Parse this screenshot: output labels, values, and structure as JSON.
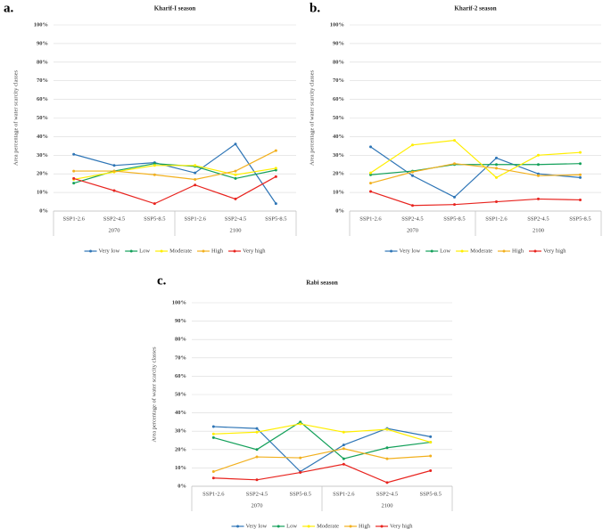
{
  "chart_data": [
    {
      "type": "line",
      "panel_label": "a.",
      "title": "Kharif-I season",
      "y_label": "Area percentage of water scarcity classes",
      "categories": [
        "SSP1-2.6",
        "SSP2-4.5",
        "SSP5-8.5",
        "SSP1-2.6",
        "SSP2-4.5",
        "SSP5-8.5"
      ],
      "x_groups": [
        "2070",
        "2100"
      ],
      "ylim": [
        0,
        100
      ],
      "yticks": [
        {
          "value": 0,
          "label": "0%"
        },
        {
          "value": 10,
          "label": "10%"
        },
        {
          "value": 20,
          "label": "20%"
        },
        {
          "value": 30,
          "label": "30%"
        },
        {
          "value": 40,
          "label": "40%"
        },
        {
          "value": 50,
          "label": "50%"
        },
        {
          "value": 60,
          "label": "60%"
        },
        {
          "value": 70,
          "label": "70%"
        },
        {
          "value": 80,
          "label": "80%"
        },
        {
          "value": 90,
          "label": "90%"
        },
        {
          "value": 100,
          "label": "100%"
        }
      ],
      "grid": true,
      "series": [
        {
          "name": "Very low",
          "color": "#2e75b6",
          "values": [
            30.5,
            24.5,
            26,
            20.5,
            36,
            4
          ]
        },
        {
          "name": "Low",
          "color": "#13a05a",
          "values": [
            15,
            21.5,
            25.5,
            24,
            17.5,
            22
          ]
        },
        {
          "name": "Moderate",
          "color": "#ffee00",
          "values": [
            17,
            21,
            24.5,
            24.5,
            19.5,
            23
          ]
        },
        {
          "name": "High",
          "color": "#f2b01e",
          "values": [
            21.5,
            21.5,
            19.5,
            17,
            21.5,
            32.5
          ]
        },
        {
          "name": "Very high",
          "color": "#e8241f",
          "values": [
            17.5,
            11,
            4,
            14,
            6.5,
            18.5
          ]
        }
      ]
    },
    {
      "type": "line",
      "panel_label": "b.",
      "title": "Kharif-2 season",
      "y_label": "Area percentage of water scarcity classes",
      "categories": [
        "SSP1-2.6",
        "SSP2-4.5",
        "SSP5-8.5",
        "SSP1-2.6",
        "SSP2-4.5",
        "SSP5-8.5"
      ],
      "x_groups": [
        "2070",
        "2100"
      ],
      "ylim": [
        0,
        100
      ],
      "yticks": [
        {
          "value": 0,
          "label": "0%"
        },
        {
          "value": 10,
          "label": "10%"
        },
        {
          "value": 20,
          "label": "20%"
        },
        {
          "value": 30,
          "label": "30%"
        },
        {
          "value": 40,
          "label": "40%"
        },
        {
          "value": 50,
          "label": "50%"
        },
        {
          "value": 60,
          "label": "60%"
        },
        {
          "value": 70,
          "label": "70%"
        },
        {
          "value": 80,
          "label": "80%"
        },
        {
          "value": 90,
          "label": "90%"
        },
        {
          "value": 100,
          "label": "100%"
        }
      ],
      "grid": true,
      "series": [
        {
          "name": "Very low",
          "color": "#2e75b6",
          "values": [
            34.5,
            19,
            7.5,
            28.5,
            20,
            18
          ]
        },
        {
          "name": "Low",
          "color": "#13a05a",
          "values": [
            19.5,
            21.5,
            25,
            25,
            25,
            25.5
          ]
        },
        {
          "name": "Moderate",
          "color": "#ffee00",
          "values": [
            20.5,
            35.5,
            38,
            18,
            30,
            31.5
          ]
        },
        {
          "name": "High",
          "color": "#f2b01e",
          "values": [
            15,
            21,
            25.5,
            23,
            19,
            19.5
          ]
        },
        {
          "name": "Very high",
          "color": "#e8241f",
          "values": [
            10.5,
            3,
            3.5,
            5,
            6.5,
            6
          ]
        }
      ]
    },
    {
      "type": "line",
      "panel_label": "c.",
      "title": "Rabi season",
      "y_label": "Area percentage of water scarcity classes",
      "categories": [
        "SSP1-2.6",
        "SSP2-4.5",
        "SSP5-8.5",
        "SSP1-2.6",
        "SSP2-4.5",
        "SSP5-8.5"
      ],
      "x_groups": [
        "2070",
        "2100"
      ],
      "ylim": [
        0,
        100
      ],
      "yticks": [
        {
          "value": 0,
          "label": "0%"
        },
        {
          "value": 10,
          "label": "10%"
        },
        {
          "value": 20,
          "label": "20%"
        },
        {
          "value": 30,
          "label": "30%"
        },
        {
          "value": 40,
          "label": "40%"
        },
        {
          "value": 50,
          "label": "50%"
        },
        {
          "value": 60,
          "label": "60%"
        },
        {
          "value": 70,
          "label": "70%"
        },
        {
          "value": 80,
          "label": "80%"
        },
        {
          "value": 90,
          "label": "90%"
        },
        {
          "value": 100,
          "label": "100%"
        }
      ],
      "grid": true,
      "series": [
        {
          "name": "Very low",
          "color": "#2e75b6",
          "values": [
            32.5,
            31.5,
            8,
            22.5,
            31.5,
            27
          ]
        },
        {
          "name": "Low",
          "color": "#13a05a",
          "values": [
            26.5,
            20,
            35,
            15,
            21,
            24
          ]
        },
        {
          "name": "Moderate",
          "color": "#ffee00",
          "values": [
            28.5,
            29.5,
            34,
            29.5,
            31,
            24
          ]
        },
        {
          "name": "High",
          "color": "#f2b01e",
          "values": [
            8,
            16,
            15.5,
            20.5,
            15,
            16.5
          ]
        },
        {
          "name": "Very high",
          "color": "#e8241f",
          "values": [
            4.5,
            3.5,
            7.5,
            12,
            2,
            8.5
          ]
        }
      ]
    }
  ]
}
